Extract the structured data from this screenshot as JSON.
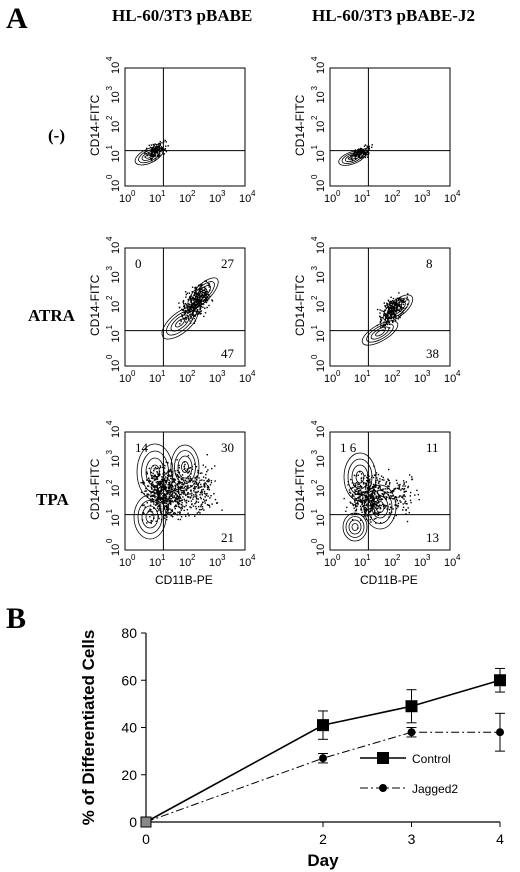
{
  "panel_a": {
    "letter": "A",
    "columns": [
      "HL-60/3T3 pBABE",
      "HL-60/3T3 pBABE-J2"
    ],
    "rows": [
      "(-)",
      "ATRA",
      "TPA"
    ],
    "x_axis_label": "CD11B-PE",
    "y_axis_label": "CD14-FITC",
    "tick_labels": [
      "10",
      "10",
      "10",
      "10",
      "10"
    ],
    "tick_exponents": [
      "0",
      "1",
      "2",
      "3",
      "4"
    ],
    "quadrant_values": [
      [
        {
          "ul": "",
          "ur": "",
          "lr": ""
        },
        {
          "ul": "",
          "ur": "",
          "lr": ""
        }
      ],
      [
        {
          "ul": "0",
          "ur": "27",
          "lr": "47"
        },
        {
          "ul": "",
          "ur": "8",
          "lr": "38"
        }
      ],
      [
        {
          "ul": "14",
          "ur": "30",
          "lr": "21"
        },
        {
          "ul": "1 6",
          "ur": "11",
          "lr": "13"
        }
      ]
    ]
  },
  "panel_b": {
    "letter": "B"
  },
  "chart_data": {
    "type": "line",
    "title": "",
    "xlabel": "Day",
    "ylabel": "% of Differentiated Cells",
    "x": [
      0,
      2,
      3,
      4
    ],
    "xlim": [
      0,
      4
    ],
    "ylim": [
      0,
      80
    ],
    "x_ticks": [
      "0",
      "2",
      "3",
      "4"
    ],
    "y_ticks": [
      "0",
      "20",
      "40",
      "60",
      "80"
    ],
    "legend_position": "bottom-right",
    "series": [
      {
        "name": "Control",
        "values": [
          0,
          41,
          49,
          60
        ],
        "errors": [
          0,
          6,
          7,
          5
        ],
        "style": "solid",
        "marker": "square"
      },
      {
        "name": "Jagged2",
        "values": [
          0,
          27,
          38,
          38
        ],
        "errors": [
          0,
          2,
          2,
          8
        ],
        "style": "dash-dot",
        "marker": "circle"
      }
    ]
  }
}
